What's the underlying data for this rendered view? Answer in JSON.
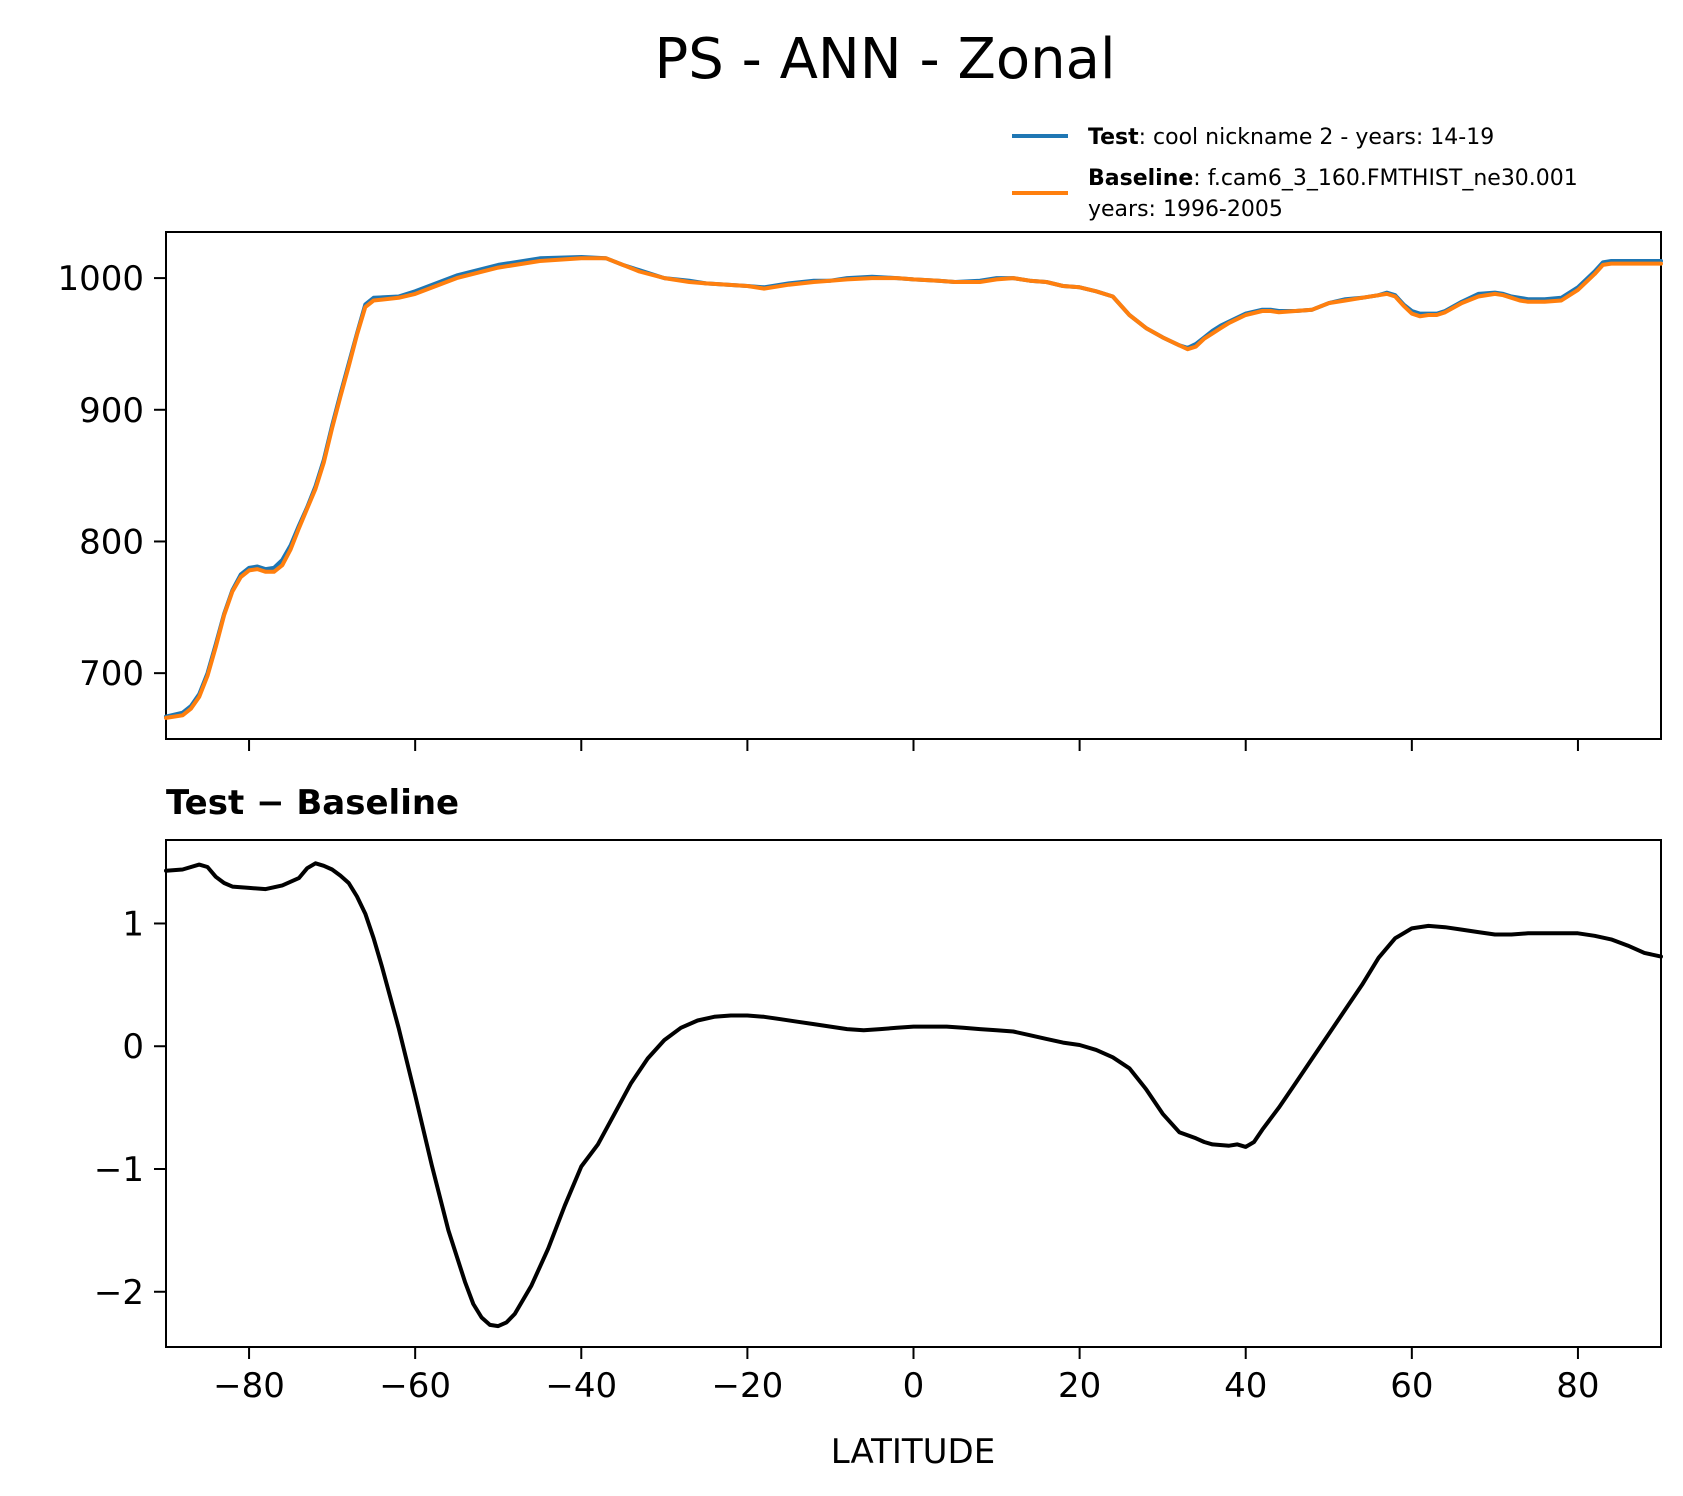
{
  "chart_data": [
    {
      "type": "line",
      "title": "PS - ANN - Zonal",
      "xlim": [
        -90,
        90
      ],
      "ylim": [
        650,
        1035
      ],
      "xticks": [
        -80,
        -60,
        -40,
        -20,
        0,
        20,
        40,
        60,
        80
      ],
      "yticks": [
        700,
        800,
        900,
        1000
      ],
      "ytick_labels": [
        "700",
        "800",
        "900",
        "1000"
      ],
      "legend": {
        "placement": "above-top-right",
        "entries": [
          {
            "bold": "Test",
            "rest": ": cool nickname 2 - years: 14-19",
            "line2": "",
            "color": "#1f77b4"
          },
          {
            "bold": "Baseline",
            "rest": ": f.cam6_3_160.FMTHIST_ne30.001",
            "line2": "years: 1996-2005",
            "color": "#ff7f0e"
          }
        ]
      },
      "series": [
        {
          "name": "Test",
          "color": "#1f77b4",
          "x": [
            -90,
            -88,
            -87,
            -86,
            -85,
            -84,
            -83,
            -82,
            -81,
            -80,
            -79,
            -78,
            -77,
            -76,
            -75,
            -74,
            -73,
            -72,
            -71,
            -70,
            -69,
            -68,
            -67,
            -66,
            -65,
            -62,
            -60,
            -55,
            -50,
            -45,
            -40,
            -37,
            -35,
            -33,
            -30,
            -27,
            -25,
            -20,
            -18,
            -15,
            -12,
            -10,
            -8,
            -5,
            -2,
            0,
            3,
            5,
            8,
            10,
            12,
            14,
            16,
            18,
            20,
            22,
            24,
            26,
            28,
            30,
            32,
            33,
            34,
            35,
            36,
            37,
            38,
            40,
            42,
            43,
            44,
            46,
            48,
            50,
            52,
            54,
            56,
            57,
            58,
            59,
            60,
            61,
            62,
            63,
            64,
            66,
            68,
            70,
            71,
            72,
            73,
            74,
            76,
            78,
            80,
            82,
            83,
            84,
            85,
            87,
            90
          ],
          "values": [
            667,
            670,
            675,
            684,
            700,
            722,
            745,
            763,
            775,
            780,
            781,
            779,
            780,
            786,
            797,
            812,
            826,
            842,
            862,
            888,
            912,
            935,
            958,
            980,
            985,
            986,
            990,
            1002,
            1010,
            1015,
            1016,
            1015,
            1010,
            1006,
            1000,
            998,
            996,
            994,
            993,
            996,
            998,
            998,
            1000,
            1001,
            1000,
            999,
            998,
            997,
            998,
            1000,
            1000,
            998,
            997,
            994,
            993,
            990,
            986,
            972,
            962,
            955,
            949,
            947,
            950,
            955,
            960,
            964,
            967,
            973,
            976,
            976,
            975,
            975,
            976,
            981,
            984,
            985,
            987,
            989,
            987,
            980,
            975,
            973,
            973,
            973,
            975,
            982,
            988,
            989,
            988,
            986,
            985,
            984,
            984,
            985,
            993,
            1005,
            1012,
            1013,
            1013,
            1013,
            1013
          ]
        },
        {
          "name": "Baseline",
          "color": "#ff7f0e",
          "x": [
            -90,
            -88,
            -87,
            -86,
            -85,
            -84,
            -83,
            -82,
            -81,
            -80,
            -79,
            -78,
            -77,
            -76,
            -75,
            -74,
            -73,
            -72,
            -71,
            -70,
            -69,
            -68,
            -67,
            -66,
            -65,
            -62,
            -60,
            -55,
            -50,
            -45,
            -40,
            -37,
            -35,
            -33,
            -30,
            -27,
            -25,
            -20,
            -18,
            -15,
            -12,
            -10,
            -8,
            -5,
            -2,
            0,
            3,
            5,
            8,
            10,
            12,
            14,
            16,
            18,
            20,
            22,
            24,
            26,
            28,
            30,
            32,
            33,
            34,
            35,
            36,
            37,
            38,
            40,
            42,
            43,
            44,
            46,
            48,
            50,
            52,
            54,
            56,
            57,
            58,
            59,
            60,
            61,
            62,
            63,
            64,
            66,
            68,
            70,
            71,
            72,
            73,
            74,
            76,
            78,
            80,
            82,
            83,
            84,
            85,
            87,
            90
          ],
          "values": [
            666,
            668,
            673,
            682,
            698,
            720,
            744,
            762,
            773,
            778,
            779,
            777,
            777,
            782,
            794,
            810,
            825,
            840,
            860,
            886,
            910,
            933,
            957,
            978,
            983,
            985,
            988,
            1000,
            1008,
            1013,
            1015,
            1015,
            1010,
            1005,
            1000,
            997,
            996,
            994,
            992,
            995,
            997,
            998,
            999,
            1000,
            1000,
            999,
            998,
            997,
            997,
            999,
            1000,
            998,
            997,
            994,
            993,
            990,
            986,
            972,
            962,
            955,
            949,
            946,
            948,
            954,
            958,
            962,
            966,
            972,
            975,
            975,
            974,
            975,
            976,
            981,
            983,
            985,
            987,
            988,
            986,
            979,
            973,
            971,
            972,
            972,
            974,
            981,
            986,
            988,
            987,
            985,
            983,
            982,
            982,
            983,
            991,
            1003,
            1010,
            1011,
            1011,
            1011,
            1011
          ]
        }
      ]
    },
    {
      "type": "line",
      "title": "Test − Baseline",
      "xlabel": "LATITUDE",
      "xlim": [
        -90,
        90
      ],
      "ylim": [
        -2.45,
        1.68
      ],
      "xticks": [
        -80,
        -60,
        -40,
        -20,
        0,
        20,
        40,
        60,
        80
      ],
      "xtick_labels": [
        "−80",
        "−60",
        "−40",
        "−20",
        "0",
        "20",
        "40",
        "60",
        "80"
      ],
      "yticks": [
        -2,
        -1,
        0,
        1
      ],
      "ytick_labels": [
        "−2",
        "−1",
        "0",
        "1"
      ],
      "series": [
        {
          "name": "",
          "color": "#000000",
          "x": [
            -90,
            -88,
            -86,
            -85,
            -84,
            -83,
            -82,
            -80,
            -78,
            -76,
            -74,
            -73,
            -72,
            -71,
            -70,
            -69,
            -68,
            -67,
            -66,
            -65,
            -64,
            -62,
            -60,
            -58,
            -56,
            -54,
            -53,
            -52,
            -51,
            -50,
            -49,
            -48,
            -46,
            -44,
            -42,
            -40,
            -38,
            -36,
            -34,
            -32,
            -30,
            -28,
            -26,
            -24,
            -22,
            -20,
            -18,
            -16,
            -14,
            -12,
            -10,
            -8,
            -6,
            -4,
            -2,
            0,
            2,
            4,
            6,
            8,
            10,
            12,
            14,
            16,
            18,
            20,
            22,
            24,
            26,
            28,
            30,
            32,
            34,
            35,
            36,
            38,
            39,
            40,
            41,
            42,
            44,
            46,
            48,
            50,
            52,
            54,
            56,
            58,
            60,
            62,
            64,
            66,
            68,
            70,
            72,
            74,
            76,
            78,
            80,
            82,
            84,
            86,
            88,
            90
          ],
          "values": [
            1.43,
            1.44,
            1.48,
            1.46,
            1.38,
            1.33,
            1.3,
            1.29,
            1.28,
            1.31,
            1.37,
            1.45,
            1.49,
            1.47,
            1.44,
            1.39,
            1.33,
            1.22,
            1.08,
            0.88,
            0.65,
            0.15,
            -0.4,
            -0.97,
            -1.5,
            -1.92,
            -2.1,
            -2.21,
            -2.27,
            -2.28,
            -2.25,
            -2.18,
            -1.95,
            -1.65,
            -1.3,
            -0.98,
            -0.8,
            -0.55,
            -0.3,
            -0.1,
            0.05,
            0.15,
            0.21,
            0.24,
            0.25,
            0.25,
            0.24,
            0.22,
            0.2,
            0.18,
            0.16,
            0.14,
            0.13,
            0.14,
            0.15,
            0.16,
            0.16,
            0.16,
            0.15,
            0.14,
            0.13,
            0.12,
            0.09,
            0.06,
            0.03,
            0.01,
            -0.03,
            -0.09,
            -0.18,
            -0.35,
            -0.55,
            -0.7,
            -0.75,
            -0.78,
            -0.8,
            -0.81,
            -0.8,
            -0.82,
            -0.78,
            -0.68,
            -0.5,
            -0.3,
            -0.1,
            0.1,
            0.3,
            0.5,
            0.72,
            0.88,
            0.96,
            0.98,
            0.97,
            0.95,
            0.93,
            0.91,
            0.91,
            0.92,
            0.92,
            0.92,
            0.92,
            0.9,
            0.87,
            0.82,
            0.76,
            0.73
          ]
        }
      ]
    }
  ]
}
